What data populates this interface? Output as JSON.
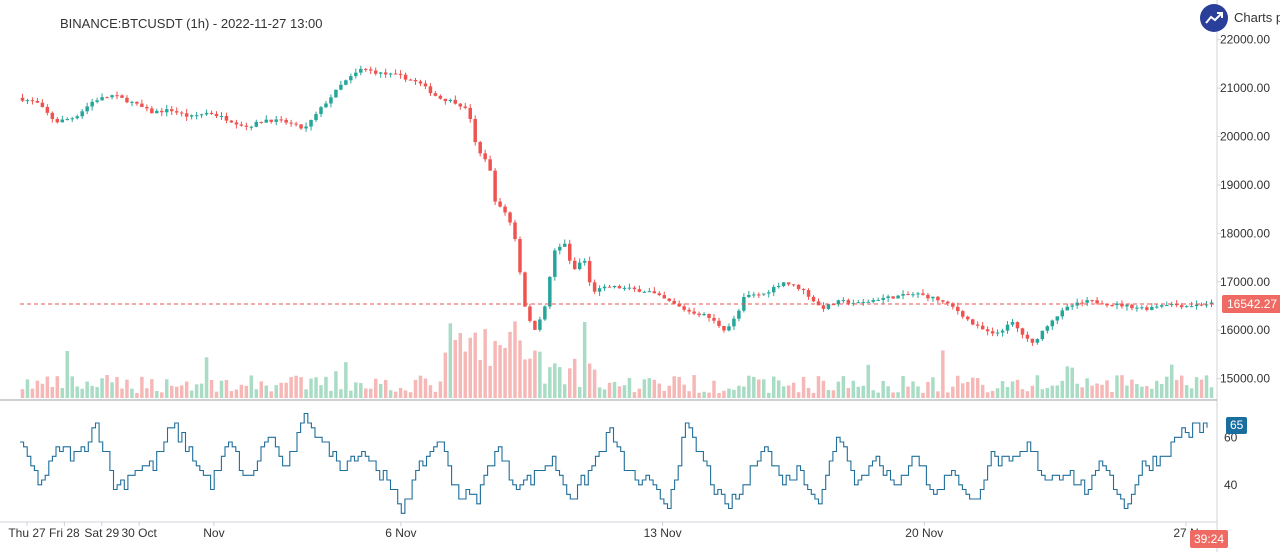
{
  "header": {
    "title": "BINANCE:BTCUSDT (1h) - 2022-11-27 13:00",
    "brand": "Charts p"
  },
  "colors": {
    "up": "#26a69a",
    "down": "#ef5350",
    "vol_up": "#a8dcc4",
    "vol_down": "#f6b8b6",
    "rsi": "#1f6f9c",
    "price_line": "#ef5350",
    "axis": "#cfd3d8"
  },
  "last_price_label": "16542.27",
  "rsi_label": "65",
  "timer_label": "39:24",
  "chart_data": {
    "type": "candlestick",
    "title": "BINANCE:BTCUSDT (1h) - 2022-11-27 13:00",
    "price_axis": {
      "ylim": [
        14600,
        22200
      ],
      "ticks": [
        15000,
        16000,
        17000,
        18000,
        19000,
        20000,
        21000,
        22000
      ],
      "tick_labels": [
        "15000.00",
        "16000.00",
        "17000.00",
        "18000.00",
        "19000.00",
        "20000.00",
        "21000.00",
        "22000.00"
      ]
    },
    "last_price": 16542.27,
    "time_axis": {
      "labels": [
        "Thu 27",
        "Fri 28",
        "Sat 29",
        "30 Oct",
        "Nov",
        "6 Nov",
        "13 Nov",
        "20 Nov",
        "27 N"
      ],
      "label_days": [
        0,
        1,
        2,
        3,
        5,
        10,
        17,
        24,
        31
      ]
    },
    "price_path_days": [
      0,
      0.5,
      1.0,
      1.5,
      2.0,
      2.5,
      3.0,
      3.5,
      4.0,
      4.5,
      5.0,
      5.5,
      6.0,
      6.5,
      7.0,
      7.5,
      8.0,
      8.5,
      9.0,
      9.5,
      10.0,
      10.5,
      11.0,
      11.5,
      11.8,
      12.0,
      12.3,
      12.5,
      12.8,
      13.0,
      13.3,
      13.5,
      13.8,
      14.0,
      14.3,
      14.5,
      14.8,
      15.0,
      15.5,
      16.0,
      16.5,
      17.0,
      17.5,
      18.0,
      18.5,
      18.8,
      19.0,
      19.5,
      20.0,
      20.5,
      21.0,
      21.5,
      22.0,
      22.5,
      23.0,
      23.5,
      24.0,
      24.5,
      25.0,
      25.5,
      26.0,
      26.5,
      27.0,
      27.5,
      28.0,
      28.5,
      29.0,
      29.5,
      30.0,
      30.5,
      31.2
    ],
    "price_path_values": [
      20800,
      20700,
      20300,
      20400,
      20750,
      20850,
      20700,
      20500,
      20550,
      20400,
      20500,
      20350,
      20200,
      20350,
      20300,
      20150,
      20650,
      21100,
      21400,
      21300,
      21250,
      21100,
      20800,
      20700,
      20500,
      19700,
      19500,
      18600,
      18400,
      17900,
      16300,
      16000,
      16500,
      17600,
      17800,
      17200,
      17500,
      16800,
      16900,
      16850,
      16800,
      16600,
      16400,
      16300,
      16000,
      16300,
      16700,
      16750,
      17000,
      16850,
      16450,
      16600,
      16550,
      16650,
      16700,
      16750,
      16650,
      16450,
      16100,
      15900,
      16150,
      15700,
      16200,
      16500,
      16600,
      16550,
      16500,
      16450,
      16550,
      16500,
      16550
    ],
    "rsi": {
      "ylim": [
        26,
        74
      ],
      "ticks": [
        40,
        60
      ],
      "last": 65,
      "path_days": [
        0,
        0.5,
        1,
        1.5,
        2,
        2.5,
        3,
        3.5,
        4,
        4.5,
        5,
        5.5,
        6,
        6.5,
        7,
        7.5,
        8,
        8.5,
        9,
        9.5,
        10,
        10.5,
        11,
        11.5,
        12,
        12.5,
        13,
        13.5,
        14,
        14.5,
        15,
        15.5,
        16,
        16.5,
        17,
        17.5,
        18,
        18.5,
        19,
        19.5,
        20,
        20.5,
        21,
        21.5,
        22,
        22.5,
        23,
        23.5,
        24,
        24.5,
        25,
        25.5,
        26,
        26.5,
        27,
        27.5,
        28,
        28.5,
        29,
        29.5,
        30,
        30.5,
        31.2
      ],
      "path_values": [
        57,
        40,
        55,
        52,
        66,
        38,
        46,
        48,
        65,
        52,
        40,
        58,
        40,
        62,
        46,
        70,
        56,
        48,
        55,
        44,
        30,
        47,
        60,
        36,
        34,
        56,
        40,
        44,
        50,
        34,
        47,
        62,
        44,
        40,
        32,
        64,
        48,
        30,
        38,
        58,
        42,
        46,
        32,
        63,
        40,
        53,
        37,
        55,
        35,
        48,
        30,
        52,
        48,
        56,
        42,
        47,
        37,
        50,
        30,
        48,
        52,
        62,
        65
      ]
    }
  }
}
